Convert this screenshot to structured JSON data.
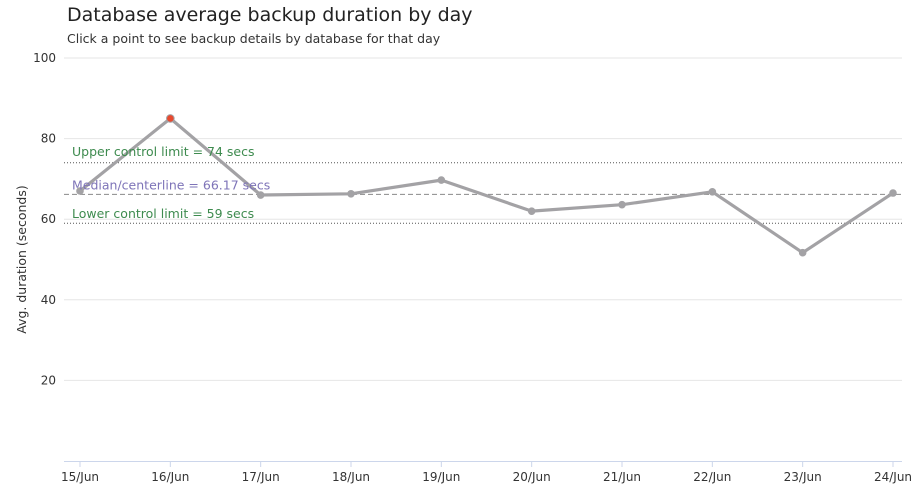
{
  "chart_data": {
    "type": "line",
    "title": "Database average backup duration by day",
    "subtitle": "Click a point to see backup details by database for that day",
    "ylabel": "Avg. duration (seconds)",
    "xlabel": "",
    "categories": [
      "15/Jun",
      "16/Jun",
      "17/Jun",
      "18/Jun",
      "19/Jun",
      "20/Jun",
      "21/Jun",
      "22/Jun",
      "23/Jun",
      "24/Jun"
    ],
    "values": [
      67,
      85,
      66,
      66.3,
      69.7,
      62,
      63.6,
      66.8,
      51.7,
      66.5
    ],
    "highlighted_index": 1,
    "ylim": [
      0,
      100
    ],
    "yticks": [
      20,
      40,
      60,
      80,
      100
    ],
    "grid": true,
    "line_color": "#a3a2a5",
    "highlight_color": "#e8492e",
    "reference_lines": [
      {
        "label": "Upper control limit = 74 secs",
        "value": 74,
        "style": "dotted",
        "color": "#3e8b4f"
      },
      {
        "label": "Median/centerline = 66.17 secs",
        "value": 66.17,
        "style": "dashed",
        "color": "#7e74b8"
      },
      {
        "label": "Lower control limit = 59 secs",
        "value": 59,
        "style": "dotted",
        "color": "#3e8b4f"
      }
    ]
  }
}
